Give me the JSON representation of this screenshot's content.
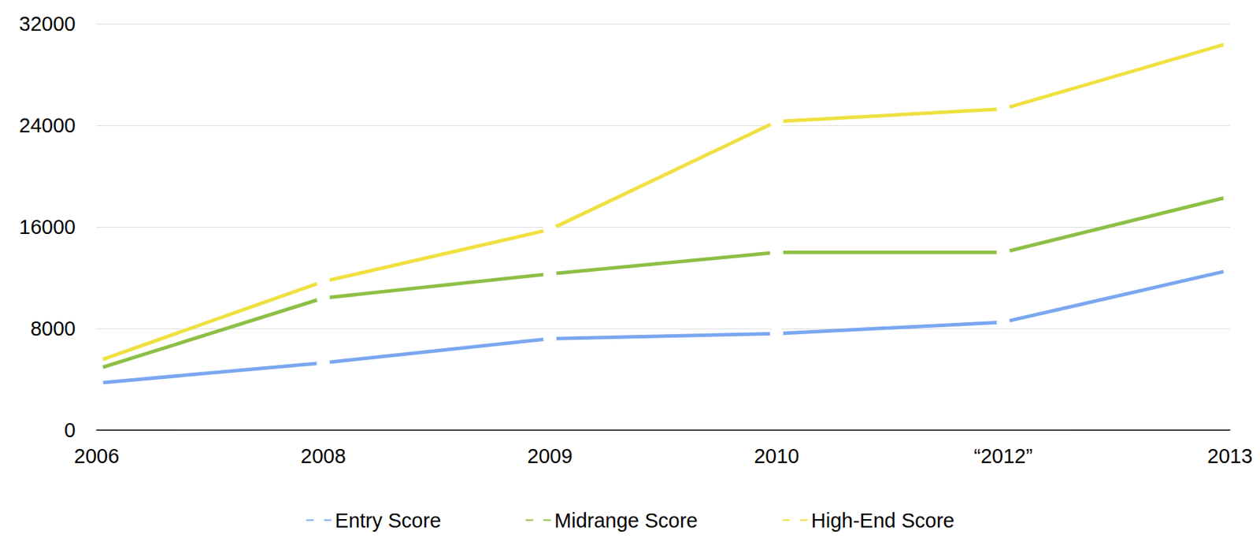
{
  "chart_data": {
    "type": "line",
    "categories": [
      "2006",
      "2008",
      "2009",
      "2010",
      "“2012”",
      "2013"
    ],
    "series": [
      {
        "name": "Entry Score",
        "color": "#7aa7f0",
        "values": [
          3700,
          5300,
          7200,
          7600,
          8500,
          12600
        ]
      },
      {
        "name": "Midrange Score",
        "color": "#8dbf45",
        "values": [
          4800,
          10400,
          12300,
          14000,
          14000,
          18400
        ]
      },
      {
        "name": "High-End Score",
        "color": "#f0e040",
        "values": [
          5400,
          11700,
          15800,
          24300,
          25300,
          30500
        ]
      }
    ],
    "ylim": [
      0,
      32000
    ],
    "yticks": [
      0,
      8000,
      16000,
      24000,
      32000
    ],
    "grid": true,
    "legend": "bottom",
    "marker": "circle"
  }
}
